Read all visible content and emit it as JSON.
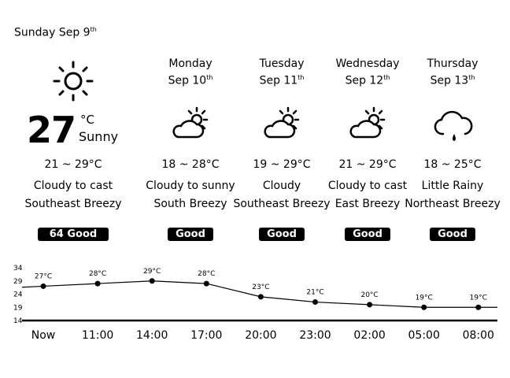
{
  "today": {
    "date": "Sunday Sep 9",
    "date_sup": "th",
    "temp": "27",
    "unit": "°C",
    "condition": "Sunny",
    "range": "21 ~ 29°C",
    "forecast": "Cloudy to cast",
    "wind": "Southeast Breezy",
    "aqi": "64  Good",
    "icon": "sun-icon"
  },
  "days": [
    {
      "day": "Monday",
      "date": "Sep 10",
      "sup": "th",
      "range": "18 ~ 28°C",
      "forecast": "Cloudy to sunny",
      "wind": "South Breezy",
      "aqi": "Good",
      "icon": "partly-cloudy-icon"
    },
    {
      "day": "Tuesday",
      "date": "Sep 11",
      "sup": "th",
      "range": "19 ~ 29°C",
      "forecast": "Cloudy",
      "wind": "Southeast Breezy",
      "aqi": "Good",
      "icon": "partly-cloudy-icon"
    },
    {
      "day": "Wednesday",
      "date": "Sep 12",
      "sup": "th",
      "range": "21 ~ 29°C",
      "forecast": "Cloudy to cast",
      "wind": "East Breezy",
      "aqi": "Good",
      "icon": "partly-cloudy-icon"
    },
    {
      "day": "Thursday",
      "date": "Sep 13",
      "sup": "th",
      "range": "18 ~ 25°C",
      "forecast": "Little Rainy",
      "wind": "Northeast Breezy",
      "aqi": "Good",
      "icon": "light-rain-icon"
    }
  ],
  "chart_data": {
    "type": "line",
    "categories": [
      "Now",
      "11:00",
      "14:00",
      "17:00",
      "20:00",
      "23:00",
      "02:00",
      "05:00",
      "08:00"
    ],
    "values": [
      27,
      28,
      29,
      28,
      23,
      21,
      20,
      19,
      19
    ],
    "labels": [
      "27°C",
      "28°C",
      "29°C",
      "28°C",
      "23°C",
      "21°C",
      "20°C",
      "19°C",
      "19°C"
    ],
    "yticks": [
      34,
      29,
      24,
      19,
      14
    ],
    "ylim": [
      14,
      34
    ],
    "grid": false
  }
}
